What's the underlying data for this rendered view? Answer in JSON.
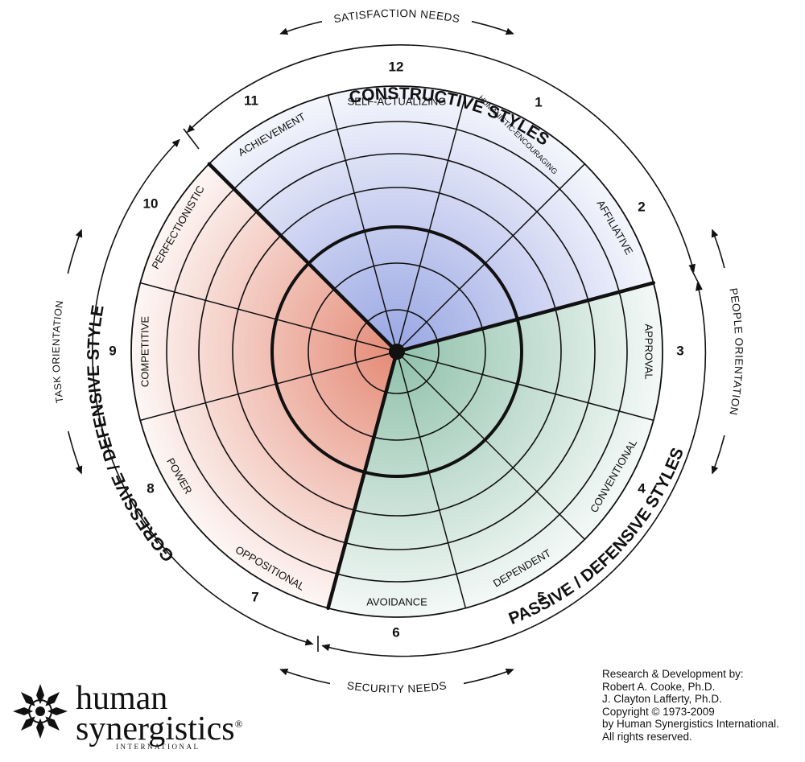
{
  "title_constructive": "CONSTRUCTIVE STYLES",
  "title_passive": "PASSIVE / DEFENSIVE STYLES",
  "title_aggressive": "AGGRESSIVE / DEFENSIVE STYLES",
  "satisfaction_needs": "SATISFACTION NEEDS",
  "security_needs": "SECURITY NEEDS",
  "people_orientation": "PEOPLE ORIENTATION",
  "task_orientation": "TASK ORIENTATION",
  "styles": [
    {
      "number": "1",
      "label": "HUMANISTIC-ENCOURAGING",
      "cluster": "constructive"
    },
    {
      "number": "2",
      "label": "AFFILIATIVE",
      "cluster": "constructive"
    },
    {
      "number": "3",
      "label": "APPROVAL",
      "cluster": "passive"
    },
    {
      "number": "4",
      "label": "CONVENTIONAL",
      "cluster": "passive"
    },
    {
      "number": "5",
      "label": "DEPENDENT",
      "cluster": "passive"
    },
    {
      "number": "6",
      "label": "AVOIDANCE",
      "cluster": "passive"
    },
    {
      "number": "7",
      "label": "OPPOSITIONAL",
      "cluster": "aggressive"
    },
    {
      "number": "8",
      "label": "POWER",
      "cluster": "aggressive"
    },
    {
      "number": "9",
      "label": "COMPETITIVE",
      "cluster": "aggressive"
    },
    {
      "number": "10",
      "label": "PERFECTIONISTIC",
      "cluster": "aggressive"
    },
    {
      "number": "11",
      "label": "ACHIEVEMENT",
      "cluster": "constructive"
    },
    {
      "number": "12",
      "label": "SELF-ACTUALIZING",
      "cluster": "constructive"
    }
  ],
  "colors": {
    "constructive": "#7f8fdc",
    "passive": "#73b196",
    "aggressive": "#e0765e",
    "line": "#111111"
  },
  "logo": {
    "line1": "human",
    "line2": "synergistics",
    "registered": "®",
    "line3": "INTERNATIONAL"
  },
  "credits": [
    "Research & Development by:",
    "Robert A. Cooke, Ph.D.",
    "J. Clayton Lafferty, Ph.D.",
    "Copyright © 1973-2009",
    "by Human Synergistics International.",
    "All rights reserved."
  ]
}
